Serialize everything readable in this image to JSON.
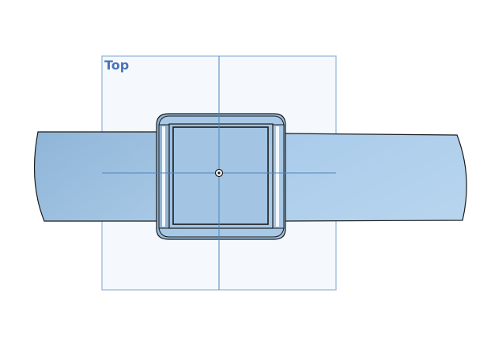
{
  "viewport": {
    "plane_label": "Top",
    "colors": {
      "background": "#ffffff",
      "plane_border": "#8fb3d9",
      "plane_fill": "#edf3fa",
      "axis_line": "#4d86bd",
      "label": "#4a74b8",
      "part_fill": "#9dc0de",
      "part_fill_light": "#b9d6ee",
      "part_edge": "#1a1a1a",
      "highlight": "#f4f8fc"
    },
    "icons": {
      "origin": "origin-point-icon"
    }
  }
}
